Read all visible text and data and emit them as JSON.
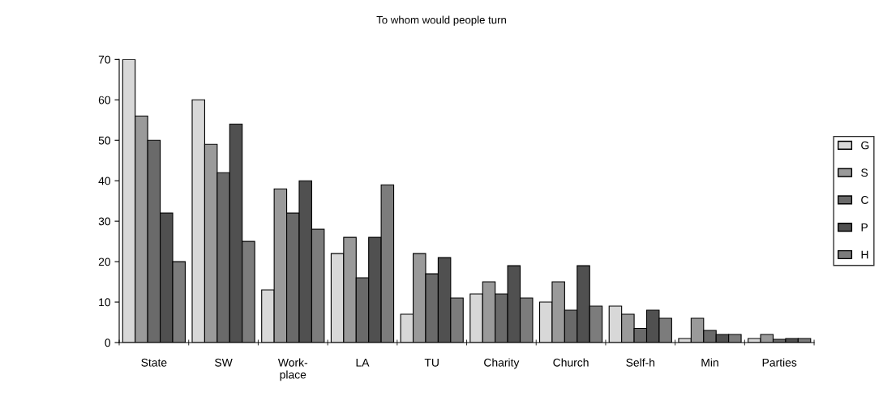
{
  "chart_data": {
    "type": "bar",
    "title": "To whom would people turn",
    "categories": [
      "State",
      "SW",
      "Work-\nplace",
      "LA",
      "TU",
      "Charity",
      "Church",
      "Self-h",
      "Min",
      "Parties"
    ],
    "series": [
      {
        "name": "G",
        "color": "#d8d8d8",
        "values": [
          70,
          60,
          13,
          22,
          7,
          12,
          10,
          9,
          1,
          1
        ]
      },
      {
        "name": "S",
        "color": "#9a9a9a",
        "values": [
          56,
          49,
          38,
          26,
          22,
          15,
          15,
          7,
          6,
          2
        ]
      },
      {
        "name": "C",
        "color": "#6a6a6a",
        "values": [
          50,
          42,
          32,
          16,
          17,
          12,
          8,
          3.5,
          3,
          0.8
        ]
      },
      {
        "name": "P",
        "color": "#505050",
        "values": [
          32,
          54,
          40,
          26,
          21,
          19,
          19,
          8,
          2,
          1
        ]
      },
      {
        "name": "H",
        "color": "#7c7c7c",
        "values": [
          20,
          25,
          28,
          39,
          11,
          11,
          9,
          6,
          2,
          1
        ]
      }
    ],
    "ylim": [
      0,
      70
    ],
    "yticks": [
      0,
      10,
      20,
      30,
      40,
      50,
      60,
      70
    ],
    "grid": false,
    "legend": "right"
  }
}
